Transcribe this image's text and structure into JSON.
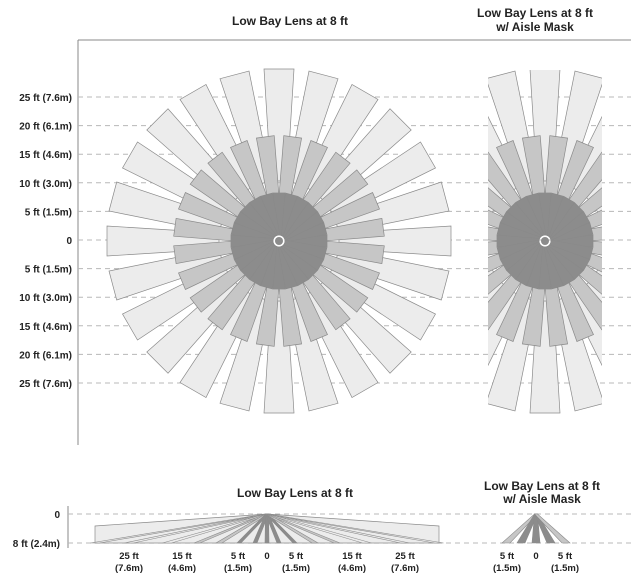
{
  "top_panel": {
    "title_left": "Low Bay Lens at 8 ft",
    "title_right_line1": "Low Bay Lens at 8 ft",
    "title_right_line2": "w/ Aisle Mask",
    "y_labels": [
      "25 ft (7.6m)",
      "20 ft (6.1m)",
      "15 ft (4.6m)",
      "10 ft (3.0m)",
      "5 ft (1.5m)",
      "0",
      "5 ft (1.5m)",
      "10 ft (3.0m)",
      "15 ft (4.6m)",
      "20 ft (6.1m)",
      "25 ft (7.6m)"
    ]
  },
  "bottom_panel": {
    "title_left": "Low Bay Lens at 8 ft",
    "title_right_line1": "Low Bay Lens at 8 ft",
    "title_right_line2": "w/ Aisle Mask",
    "y_labels": [
      "0",
      "8 ft (2.4m)"
    ],
    "x_labels_left": [
      {
        "ft": "25 ft",
        "m": "(7.6m)"
      },
      {
        "ft": "15 ft",
        "m": "(4.6m)"
      },
      {
        "ft": "5 ft",
        "m": "(1.5m)"
      },
      {
        "ft": "0",
        "m": ""
      },
      {
        "ft": "5 ft",
        "m": "(1.5m)"
      },
      {
        "ft": "15 ft",
        "m": "(4.6m)"
      },
      {
        "ft": "25 ft",
        "m": "(7.6m)"
      }
    ],
    "x_labels_right": [
      {
        "ft": "5 ft",
        "m": "(1.5m)"
      },
      {
        "ft": "0",
        "m": ""
      },
      {
        "ft": "5 ft",
        "m": "(1.5m)"
      }
    ]
  },
  "colors": {
    "outer_zone": "#ececec",
    "middle_zone": "#c6c6c6",
    "inner_zone": "#8c8c8c",
    "outline": "#8a8a8a"
  }
}
